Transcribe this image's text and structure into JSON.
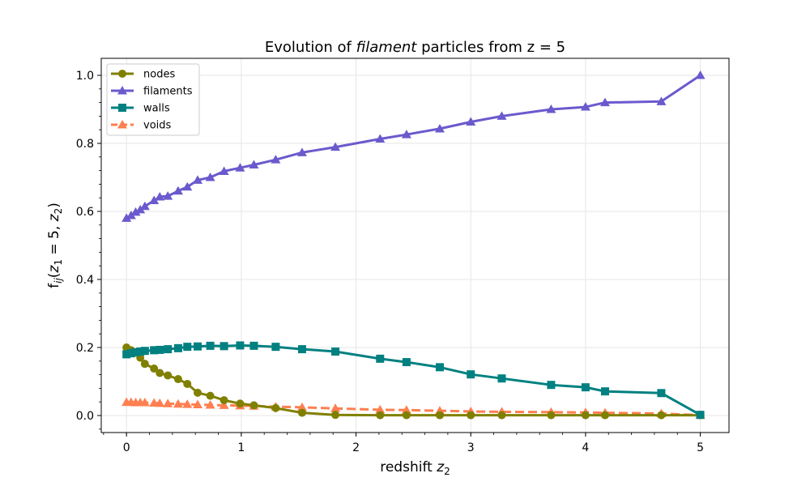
{
  "chart_data": {
    "type": "line",
    "title_parts": [
      "Evolution of ",
      "filament",
      " particles from z = 5"
    ],
    "xlabel_text": "redshift ",
    "xlabel_var": "z",
    "xlabel_sub": "2",
    "ylabel_parts": [
      "f",
      "ij",
      "(",
      "z",
      "1",
      " = 5, ",
      "z",
      "2",
      ")"
    ],
    "xlim": [
      -0.22,
      5.25
    ],
    "ylim": [
      -0.05,
      1.05
    ],
    "xticks": [
      0,
      1,
      2,
      3,
      4,
      5
    ],
    "xtick_labels": [
      "0",
      "1",
      "2",
      "3",
      "4",
      "5"
    ],
    "yticks": [
      0.0,
      0.2,
      0.4,
      0.6,
      0.8,
      1.0
    ],
    "ytick_labels": [
      "0.0",
      "0.2",
      "0.4",
      "0.6",
      "0.8",
      "1.0"
    ],
    "grid": true,
    "legend_position": "top-left",
    "x": [
      0.0,
      0.04,
      0.08,
      0.12,
      0.16,
      0.24,
      0.29,
      0.36,
      0.45,
      0.53,
      0.62,
      0.73,
      0.85,
      0.99,
      1.11,
      1.3,
      1.53,
      1.82,
      2.21,
      2.44,
      2.73,
      3.0,
      3.27,
      3.7,
      4.0,
      4.17,
      4.66,
      5.0
    ],
    "series": [
      {
        "name": "nodes",
        "color": "#808000",
        "marker": "circle",
        "dash": "solid",
        "values": [
          0.2,
          0.192,
          0.185,
          0.17,
          0.152,
          0.138,
          0.125,
          0.118,
          0.107,
          0.093,
          0.067,
          0.058,
          0.045,
          0.035,
          0.03,
          0.022,
          0.008,
          0.002,
          0.001,
          0.001,
          0.001,
          0.001,
          0.001,
          0.001,
          0.001,
          0.001,
          0.001,
          0.001
        ]
      },
      {
        "name": "filaments",
        "color": "#6a5acd",
        "marker": "triangle",
        "dash": "solid",
        "values": [
          0.58,
          0.588,
          0.598,
          0.605,
          0.615,
          0.632,
          0.643,
          0.645,
          0.66,
          0.672,
          0.692,
          0.7,
          0.718,
          0.728,
          0.737,
          0.752,
          0.773,
          0.789,
          0.813,
          0.826,
          0.843,
          0.863,
          0.88,
          0.9,
          0.907,
          0.92,
          0.923,
          1.0
        ]
      },
      {
        "name": "walls",
        "color": "#008080",
        "marker": "square",
        "dash": "solid",
        "values": [
          0.18,
          0.183,
          0.186,
          0.188,
          0.19,
          0.192,
          0.193,
          0.195,
          0.198,
          0.202,
          0.203,
          0.205,
          0.204,
          0.206,
          0.205,
          0.202,
          0.195,
          0.188,
          0.167,
          0.157,
          0.142,
          0.121,
          0.109,
          0.09,
          0.083,
          0.071,
          0.066,
          0.002
        ]
      },
      {
        "name": "voids",
        "color": "#ff7f50",
        "marker": "triangle",
        "dash": "dashed",
        "values": [
          0.039,
          0.039,
          0.038,
          0.038,
          0.038,
          0.037,
          0.036,
          0.035,
          0.034,
          0.033,
          0.032,
          0.031,
          0.03,
          0.029,
          0.028,
          0.026,
          0.024,
          0.021,
          0.017,
          0.016,
          0.014,
          0.012,
          0.011,
          0.01,
          0.009,
          0.008,
          0.006,
          0.001
        ]
      }
    ]
  }
}
